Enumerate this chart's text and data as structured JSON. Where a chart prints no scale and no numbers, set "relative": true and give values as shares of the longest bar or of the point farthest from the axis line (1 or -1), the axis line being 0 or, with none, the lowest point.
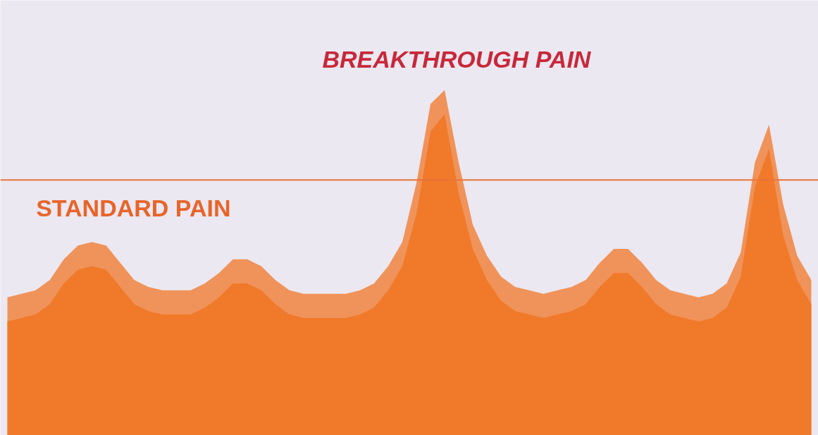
{
  "chart_data": {
    "type": "area",
    "relative": true,
    "grid": false,
    "categories": [
      null,
      null,
      null,
      null,
      null,
      null,
      null,
      null,
      null,
      null,
      null,
      null,
      null,
      null,
      null,
      null,
      null,
      null,
      null,
      null,
      null,
      null,
      null,
      null,
      null,
      null,
      null,
      null,
      null,
      null,
      null,
      null,
      null,
      null,
      null,
      null,
      null,
      null,
      null,
      null,
      null,
      null,
      null,
      null,
      null,
      null,
      null,
      null,
      null,
      null,
      null,
      null,
      null,
      null,
      null,
      null,
      null,
      null
    ],
    "series": [
      {
        "color": "#f0935a",
        "values": [
          0.4,
          0.41,
          0.42,
          0.45,
          0.51,
          0.55,
          0.56,
          0.55,
          0.5,
          0.45,
          0.43,
          0.42,
          0.42,
          0.42,
          0.44,
          0.47,
          0.51,
          0.51,
          0.49,
          0.45,
          0.42,
          0.41,
          0.41,
          0.41,
          0.41,
          0.42,
          0.44,
          0.49,
          0.56,
          0.73,
          0.96,
          1.0,
          0.79,
          0.61,
          0.52,
          0.46,
          0.43,
          0.42,
          0.41,
          0.42,
          0.43,
          0.45,
          0.5,
          0.54,
          0.54,
          0.5,
          0.45,
          0.42,
          0.41,
          0.4,
          0.41,
          0.44,
          0.53,
          0.79,
          0.9,
          0.67,
          0.52,
          0.45
        ]
      },
      {
        "color": "#f07a2a",
        "values": [
          0.33,
          0.34,
          0.35,
          0.38,
          0.44,
          0.48,
          0.49,
          0.48,
          0.43,
          0.38,
          0.36,
          0.35,
          0.35,
          0.35,
          0.37,
          0.4,
          0.44,
          0.44,
          0.42,
          0.38,
          0.35,
          0.34,
          0.34,
          0.34,
          0.34,
          0.35,
          0.37,
          0.42,
          0.49,
          0.64,
          0.88,
          0.93,
          0.7,
          0.54,
          0.45,
          0.39,
          0.36,
          0.35,
          0.34,
          0.35,
          0.36,
          0.38,
          0.43,
          0.47,
          0.47,
          0.43,
          0.38,
          0.35,
          0.34,
          0.33,
          0.34,
          0.37,
          0.46,
          0.72,
          0.83,
          0.58,
          0.45,
          0.38
        ]
      }
    ],
    "ref_lines": [
      {
        "axis": "y",
        "value": 0.74,
        "color": "#e8743a"
      }
    ],
    "annotations": [
      "BREAKTHROUGH PAIN",
      "STANDARD PAIN"
    ]
  }
}
